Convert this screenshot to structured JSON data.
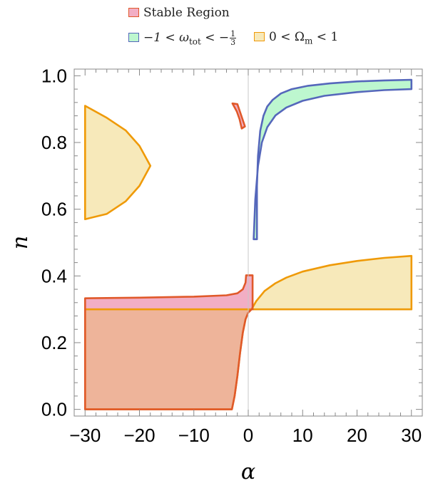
{
  "chart_data": {
    "type": "area",
    "xlabel": "α",
    "ylabel": "n",
    "xlim": [
      -32,
      32
    ],
    "ylim": [
      -0.02,
      1.02
    ],
    "x_ticks": [
      "−30",
      "−20",
      "−10",
      "0",
      "10",
      "20",
      "30"
    ],
    "y_ticks": [
      "0.0",
      "0.2",
      "0.4",
      "0.6",
      "0.8",
      "1.0"
    ],
    "x_tick_values": [
      -30,
      -20,
      -10,
      0,
      10,
      20,
      30
    ],
    "y_tick_values": [
      0.0,
      0.2,
      0.4,
      0.6,
      0.8,
      1.0
    ],
    "legend_position": "top",
    "series": [
      {
        "name": "Stable Region",
        "fill": "#f2aec4",
        "stroke": "#e0592a",
        "regions": [
          [
            [
              -30,
              0.0
            ],
            [
              -3,
              0.0
            ],
            [
              -2.5,
              0.04
            ],
            [
              -2,
              0.1
            ],
            [
              -1.5,
              0.17
            ],
            [
              -1,
              0.23
            ],
            [
              -0.5,
              0.27
            ],
            [
              0,
              0.29
            ],
            [
              0.6,
              0.3
            ],
            [
              0.8,
              0.3
            ],
            [
              0.8,
              0.402
            ],
            [
              -0.4,
              0.402
            ],
            [
              -0.5,
              0.38
            ],
            [
              -1,
              0.36
            ],
            [
              -2,
              0.348
            ],
            [
              -4,
              0.342
            ],
            [
              -10,
              0.338
            ],
            [
              -20,
              0.335
            ],
            [
              -30,
              0.333
            ]
          ],
          [
            [
              -2.9,
              0.917
            ],
            [
              -2.0,
              0.915
            ],
            [
              -0.6,
              0.848
            ],
            [
              -1.2,
              0.842
            ],
            [
              -1.6,
              0.87
            ],
            [
              -2.1,
              0.893
            ]
          ]
        ]
      },
      {
        "name": "−1 < ω_tot < −1/3",
        "fill": "#bdf7cf",
        "stroke": "#5567bb",
        "regions": [
          [
            [
              1.0,
              0.51
            ],
            [
              1.3,
              0.63
            ],
            [
              1.8,
              0.73
            ],
            [
              2.5,
              0.8
            ],
            [
              3.5,
              0.846
            ],
            [
              5,
              0.881
            ],
            [
              7,
              0.905
            ],
            [
              10,
              0.925
            ],
            [
              14,
              0.94
            ],
            [
              20,
              0.951
            ],
            [
              25,
              0.957
            ],
            [
              30,
              0.96
            ],
            [
              30,
              0.988
            ],
            [
              25,
              0.986
            ],
            [
              20,
              0.983
            ],
            [
              15,
              0.977
            ],
            [
              11,
              0.97
            ],
            [
              8,
              0.96
            ],
            [
              6,
              0.947
            ],
            [
              4.5,
              0.928
            ],
            [
              3.5,
              0.908
            ],
            [
              2.8,
              0.88
            ],
            [
              2.2,
              0.835
            ],
            [
              1.8,
              0.76
            ],
            [
              1.6,
              0.67
            ],
            [
              1.6,
              0.51
            ]
          ]
        ]
      },
      {
        "name": "0 < Ω_m < 1",
        "fill": "#f7e9ba",
        "stroke": "#ef9a08",
        "regions": [
          [
            [
              -30,
              0.57
            ],
            [
              -26,
              0.586
            ],
            [
              -22.5,
              0.624
            ],
            [
              -20,
              0.67
            ],
            [
              -18,
              0.73
            ],
            [
              -20,
              0.79
            ],
            [
              -22.5,
              0.836
            ],
            [
              -26,
              0.874
            ],
            [
              -30,
              0.91
            ]
          ],
          [
            [
              -30,
              0.0
            ],
            [
              -3,
              0.0
            ],
            [
              -2.5,
              0.04
            ],
            [
              -2,
              0.1
            ],
            [
              -1.5,
              0.17
            ],
            [
              -1,
              0.23
            ],
            [
              -0.5,
              0.27
            ],
            [
              0,
              0.29
            ],
            [
              0.6,
              0.3
            ],
            [
              -30,
              0.3
            ]
          ],
          [
            [
              0.6,
              0.3
            ],
            [
              30,
              0.3
            ],
            [
              30,
              0.46
            ],
            [
              25,
              0.454
            ],
            [
              20,
              0.445
            ],
            [
              15,
              0.432
            ],
            [
              10,
              0.413
            ],
            [
              7,
              0.395
            ],
            [
              5,
              0.378
            ],
            [
              3,
              0.355
            ],
            [
              1.5,
              0.325
            ]
          ]
        ]
      }
    ]
  },
  "legend": {
    "stable_label": "Stable Region",
    "omega_tot_prefix": "−1 < ω",
    "omega_tot_sub": "tot",
    "omega_tot_mid": " < −",
    "frac_num": "1",
    "frac_den": "3",
    "omega_m_prefix": "0 <  Ω",
    "omega_m_sub": "m",
    "omega_m_suffix": " < 1"
  },
  "colors": {
    "stable_fill": "#f2aec4",
    "stable_stroke": "#e0592a",
    "green_fill": "#bdf7cf",
    "green_stroke": "#5567bb",
    "yellow_fill": "#f7e9ba",
    "yellow_stroke": "#ef9a08",
    "overlap_fill": "#eeb49a"
  }
}
